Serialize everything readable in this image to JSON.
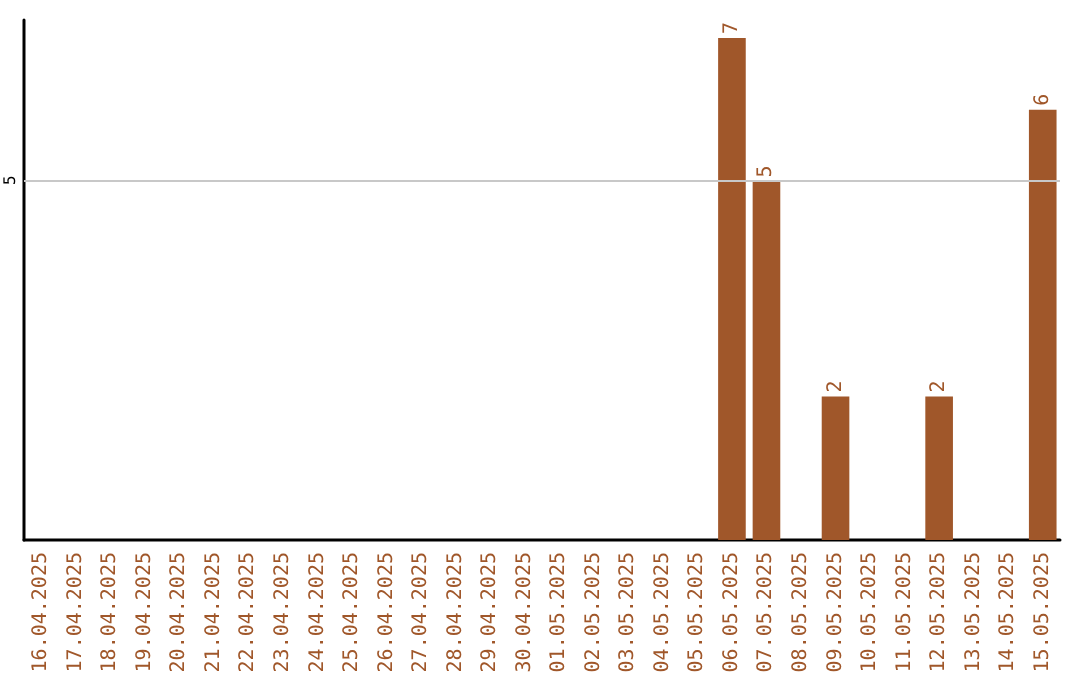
{
  "chart_data": {
    "type": "bar",
    "categories": [
      "16.04.2025",
      "17.04.2025",
      "18.04.2025",
      "19.04.2025",
      "20.04.2025",
      "21.04.2025",
      "22.04.2025",
      "23.04.2025",
      "24.04.2025",
      "25.04.2025",
      "26.04.2025",
      "27.04.2025",
      "28.04.2025",
      "29.04.2025",
      "30.04.2025",
      "01.05.2025",
      "02.05.2025",
      "03.05.2025",
      "04.05.2025",
      "05.05.2025",
      "06.05.2025",
      "07.05.2025",
      "08.05.2025",
      "09.05.2025",
      "10.05.2025",
      "11.05.2025",
      "12.05.2025",
      "13.05.2025",
      "14.05.2025",
      "15.05.2025"
    ],
    "values": [
      null,
      null,
      null,
      null,
      null,
      null,
      null,
      null,
      null,
      null,
      null,
      null,
      null,
      null,
      null,
      null,
      null,
      null,
      null,
      null,
      7,
      5,
      null,
      2,
      null,
      null,
      2,
      null,
      null,
      6
    ],
    "data_labels": true,
    "color": "#a0572a",
    "ylim": [
      0,
      7.25
    ],
    "ref_lines": [
      {
        "axis": "y",
        "value": 5,
        "label": "5",
        "color": "#c8c8c8"
      }
    ]
  }
}
